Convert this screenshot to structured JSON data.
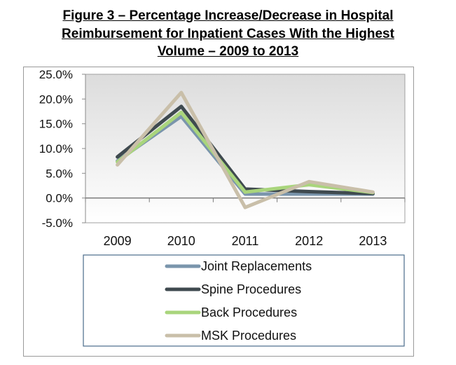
{
  "title_lines": [
    "Figure 3 – Percentage Increase/Decrease in Hospital",
    "Reimbursement for Inpatient Cases With the Highest",
    "Volume – 2009 to 2013"
  ],
  "chart_data": {
    "type": "line",
    "title": "Figure 3 – Percentage Increase/Decrease in Hospital Reimbursement for Inpatient Cases With the Highest Volume – 2009 to 2013",
    "categories": [
      "2009",
      "2010",
      "2011",
      "2012",
      "2013"
    ],
    "ylim": [
      -5,
      25
    ],
    "yticks": [
      25,
      20,
      15,
      10,
      5,
      0,
      -5
    ],
    "ytick_labels": [
      "25.0%",
      "20.0%",
      "15.0%",
      "10.0%",
      "5.0%",
      "0.0%",
      "-5.0%"
    ],
    "grid": false,
    "legend_position": "bottom",
    "series": [
      {
        "name": "Joint Replacements",
        "color": "#7a95ac",
        "values": [
          7.5,
          16.5,
          0.8,
          0.8,
          0.8
        ]
      },
      {
        "name": "Spine Procedures",
        "color": "#3f4a4f",
        "values": [
          8.3,
          18.5,
          1.8,
          1.3,
          0.9
        ]
      },
      {
        "name": "Back Procedures",
        "color": "#a9d57c",
        "values": [
          7.3,
          17.3,
          1.2,
          2.7,
          1.1
        ]
      },
      {
        "name": "MSK Procedures",
        "color": "#c9bfa9",
        "values": [
          6.7,
          21.3,
          -1.9,
          3.3,
          1.2
        ]
      }
    ]
  }
}
